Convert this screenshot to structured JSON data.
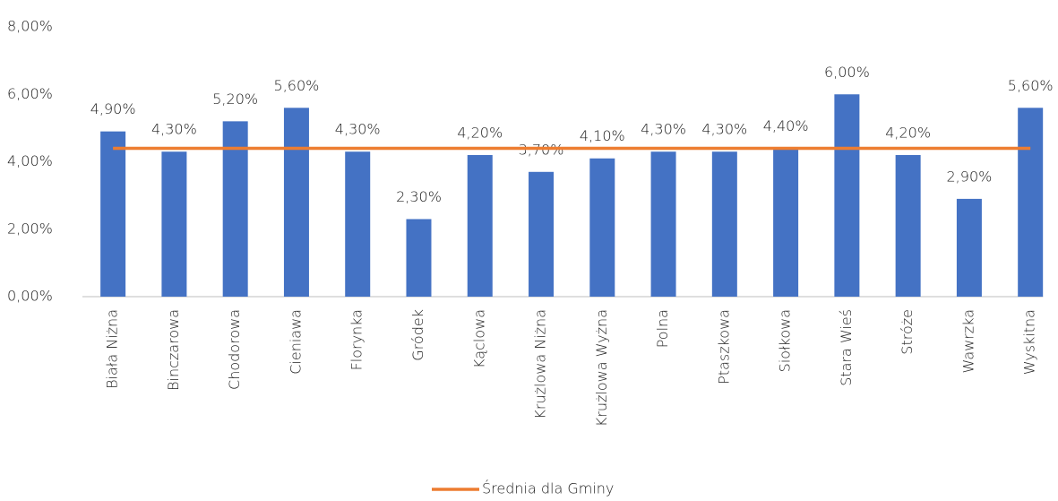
{
  "chart_data": {
    "type": "bar",
    "categories": [
      "Biała Niżna",
      "Binczarowa",
      "Chodorowa",
      "Cieniawa",
      "Florynka",
      "Gródek",
      "Kąclowa",
      "Krużlowa Niżna",
      "Krużlowa Wyżna",
      "Polna",
      "Ptaszkowa",
      "Siołkowa",
      "Stara Wieś",
      "Stróże",
      "Wawrzka",
      "Wyskitna"
    ],
    "series": [
      {
        "type": "bar",
        "color": "#4472c4",
        "values": [
          4.9,
          4.3,
          5.2,
          5.6,
          4.3,
          2.3,
          4.2,
          3.7,
          4.1,
          4.3,
          4.3,
          4.4,
          6.0,
          4.2,
          2.9,
          5.6
        ],
        "value_labels": [
          "4,90%",
          "4,30%",
          "5,20%",
          "5,60%",
          "4,30%",
          "2,30%",
          "4,20%",
          "3,70%",
          "4,10%",
          "4,30%",
          "4,30%",
          "4,40%",
          "6,00%",
          "4,20%",
          "2,90%",
          "5,60%"
        ]
      },
      {
        "type": "line",
        "name": "Średnia dla Gminy",
        "color": "#ed7d31",
        "values": [
          4.4,
          4.4,
          4.4,
          4.4,
          4.4,
          4.4,
          4.4,
          4.4,
          4.4,
          4.4,
          4.4,
          4.4,
          4.4,
          4.4,
          4.4,
          4.4
        ]
      }
    ],
    "ylim": [
      0,
      8
    ],
    "yticks": [
      {
        "value": 0,
        "label": "0,00%"
      },
      {
        "value": 2,
        "label": "2,00%"
      },
      {
        "value": 4,
        "label": "4,00%"
      },
      {
        "value": 6,
        "label": "6,00%"
      },
      {
        "value": 8,
        "label": "8,00%"
      }
    ],
    "legend": "bottom"
  }
}
